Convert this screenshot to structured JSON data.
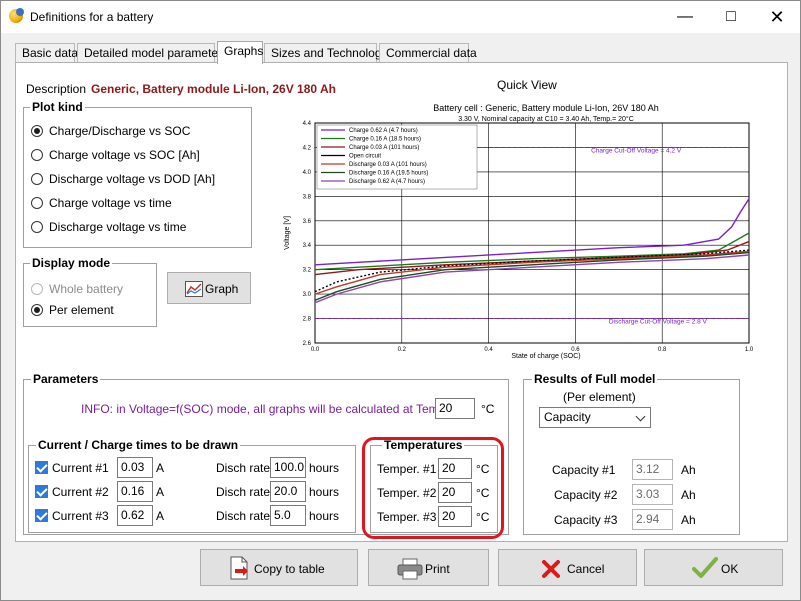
{
  "window": {
    "title": "Definitions for a battery"
  },
  "tabs": [
    {
      "label": "Basic data"
    },
    {
      "label": "Detailed model parameters"
    },
    {
      "label": "Graphs"
    },
    {
      "label": "Sizes and Technology"
    },
    {
      "label": "Commercial data"
    }
  ],
  "description": {
    "label": "Description",
    "value": "Generic, Battery module Li-Ion, 26V 180 Ah"
  },
  "quick_view": {
    "label": "Quick View"
  },
  "plot_kind": {
    "title": "Plot kind",
    "options": [
      {
        "label": "Charge/Discharge vs SOC",
        "checked": true
      },
      {
        "label": "Charge voltage vs SOC [Ah]",
        "checked": false
      },
      {
        "label": "Discharge voltage vs DOD [Ah]",
        "checked": false
      },
      {
        "label": "Charge voltage vs time",
        "checked": false
      },
      {
        "label": "Discharge voltage vs time",
        "checked": false
      }
    ]
  },
  "display_mode": {
    "title": "Display mode",
    "options": [
      {
        "label": "Whole battery",
        "checked": false,
        "disabled": true
      },
      {
        "label": "Per element",
        "checked": true,
        "disabled": false
      }
    ]
  },
  "graph_button": {
    "label": "Graph"
  },
  "parameters": {
    "title": "Parameters",
    "info": "INFO: in Voltage=f(SOC) mode, all graphs will be calculated at Temp. =",
    "temp_value": "20",
    "temp_unit": "°C"
  },
  "currents": {
    "title": "Current / Charge times to be drawn",
    "rows": [
      {
        "label": "Current #1",
        "value": "0.03",
        "unit": "A",
        "disch_label": "Disch rate",
        "disch_value": "100.0",
        "disch_unit": "hours"
      },
      {
        "label": "Current #2",
        "value": "0.16",
        "unit": "A",
        "disch_label": "Disch rate",
        "disch_value": "20.0",
        "disch_unit": "hours"
      },
      {
        "label": "Current #3",
        "value": "0.62",
        "unit": "A",
        "disch_label": "Disch rate",
        "disch_value": "5.0",
        "disch_unit": "hours"
      }
    ]
  },
  "temperatures": {
    "title": "Temperatures",
    "rows": [
      {
        "label": "Temper. #1",
        "value": "20",
        "unit": "°C"
      },
      {
        "label": "Temper. #2",
        "value": "20",
        "unit": "°C"
      },
      {
        "label": "Temper. #3",
        "value": "20",
        "unit": "°C"
      }
    ]
  },
  "results": {
    "title": "Results of Full model",
    "subtitle": "(Per element)",
    "select_value": "Capacity",
    "rows": [
      {
        "label": "Capacity #1",
        "value": "3.12",
        "unit": "Ah"
      },
      {
        "label": "Capacity #2",
        "value": "3.03",
        "unit": "Ah"
      },
      {
        "label": "Capacity #3",
        "value": "2.94",
        "unit": "Ah"
      }
    ]
  },
  "buttons": {
    "copy": "Copy to table",
    "print": "Print",
    "cancel": "Cancel",
    "ok": "OK"
  },
  "chart_data": {
    "type": "line",
    "title": "Battery cell : Generic, Battery module Li-Ion, 26V 180 Ah",
    "subtitle": "3.30 V, Nominal capacity at C10 = 3.40 Ah, Temp.= 20°C",
    "xlabel": "State of charge (SOC)",
    "ylabel": "Voltage [V]",
    "xlim": [
      0,
      1
    ],
    "ylim": [
      2.6,
      4.4
    ],
    "xticks": [
      "0.0",
      "0.2",
      "0.4",
      "0.6",
      "0.8",
      "1.0"
    ],
    "yticks": [
      "2.6",
      "2.8",
      "3.0",
      "3.2",
      "3.4",
      "3.6",
      "3.8",
      "4.0",
      "4.2",
      "4.4"
    ],
    "annotations": [
      {
        "text": "Charge Cut-Off Voltage = 4.2 V",
        "x": 0.74,
        "y": 4.16
      },
      {
        "text": "Discharge Cut-Off Voltage = 2.8 V",
        "x": 0.79,
        "y": 2.76
      }
    ],
    "series": [
      {
        "name": "Charge 0.62 A  (4.7 hours)",
        "color": "#7a1fc9",
        "x": [
          0,
          0.1,
          0.3,
          0.5,
          0.7,
          0.85,
          0.93,
          0.96,
          0.98,
          1.0
        ],
        "y": [
          3.24,
          3.26,
          3.3,
          3.34,
          3.38,
          3.4,
          3.45,
          3.55,
          3.67,
          3.78
        ]
      },
      {
        "name": "Charge 0.16 A  (18.5 hours)",
        "color": "#1f7a1f",
        "x": [
          0,
          0.1,
          0.3,
          0.5,
          0.7,
          0.85,
          0.93,
          0.97,
          1.0
        ],
        "y": [
          3.2,
          3.22,
          3.26,
          3.29,
          3.31,
          3.33,
          3.36,
          3.44,
          3.5
        ]
      },
      {
        "name": "Charge 0.03 A  (101 hours)",
        "color": "#8b1a1a",
        "x": [
          0,
          0.1,
          0.3,
          0.5,
          0.7,
          0.85,
          0.95,
          1.0
        ],
        "y": [
          3.16,
          3.2,
          3.24,
          3.27,
          3.3,
          3.32,
          3.36,
          3.43
        ]
      },
      {
        "name": "Open circuit",
        "color": "#000000",
        "x": [
          0,
          0.05,
          0.15,
          0.3,
          0.5,
          0.7,
          0.9,
          1.0
        ],
        "y": [
          3.02,
          3.1,
          3.18,
          3.23,
          3.27,
          3.3,
          3.33,
          3.36
        ]
      },
      {
        "name": "Discharge 0.03 A  (101 hours)",
        "color": "#c0392b",
        "x": [
          0,
          0.05,
          0.15,
          0.3,
          0.5,
          0.7,
          0.9,
          1.0
        ],
        "y": [
          3.0,
          3.06,
          3.16,
          3.22,
          3.26,
          3.29,
          3.32,
          3.35
        ]
      },
      {
        "name": "Discharge 0.16 A  (19.5 hours)",
        "color": "#1f4a1f",
        "x": [
          0,
          0.05,
          0.15,
          0.3,
          0.5,
          0.7,
          0.9,
          1.0
        ],
        "y": [
          2.95,
          3.02,
          3.12,
          3.2,
          3.24,
          3.28,
          3.31,
          3.34
        ]
      },
      {
        "name": "Discharge 0.62 A  (4.7 hours)",
        "color": "#8e44ad",
        "x": [
          0,
          0.05,
          0.15,
          0.3,
          0.5,
          0.7,
          0.9,
          1.0
        ],
        "y": [
          2.93,
          3.0,
          3.1,
          3.18,
          3.22,
          3.26,
          3.29,
          3.32
        ]
      }
    ],
    "cutoff_lines": [
      {
        "y": 4.2,
        "color": "#7a1fc9"
      },
      {
        "y": 2.8,
        "color": "#7a1fc9"
      }
    ],
    "grid": true,
    "legend_position": "top-left"
  }
}
